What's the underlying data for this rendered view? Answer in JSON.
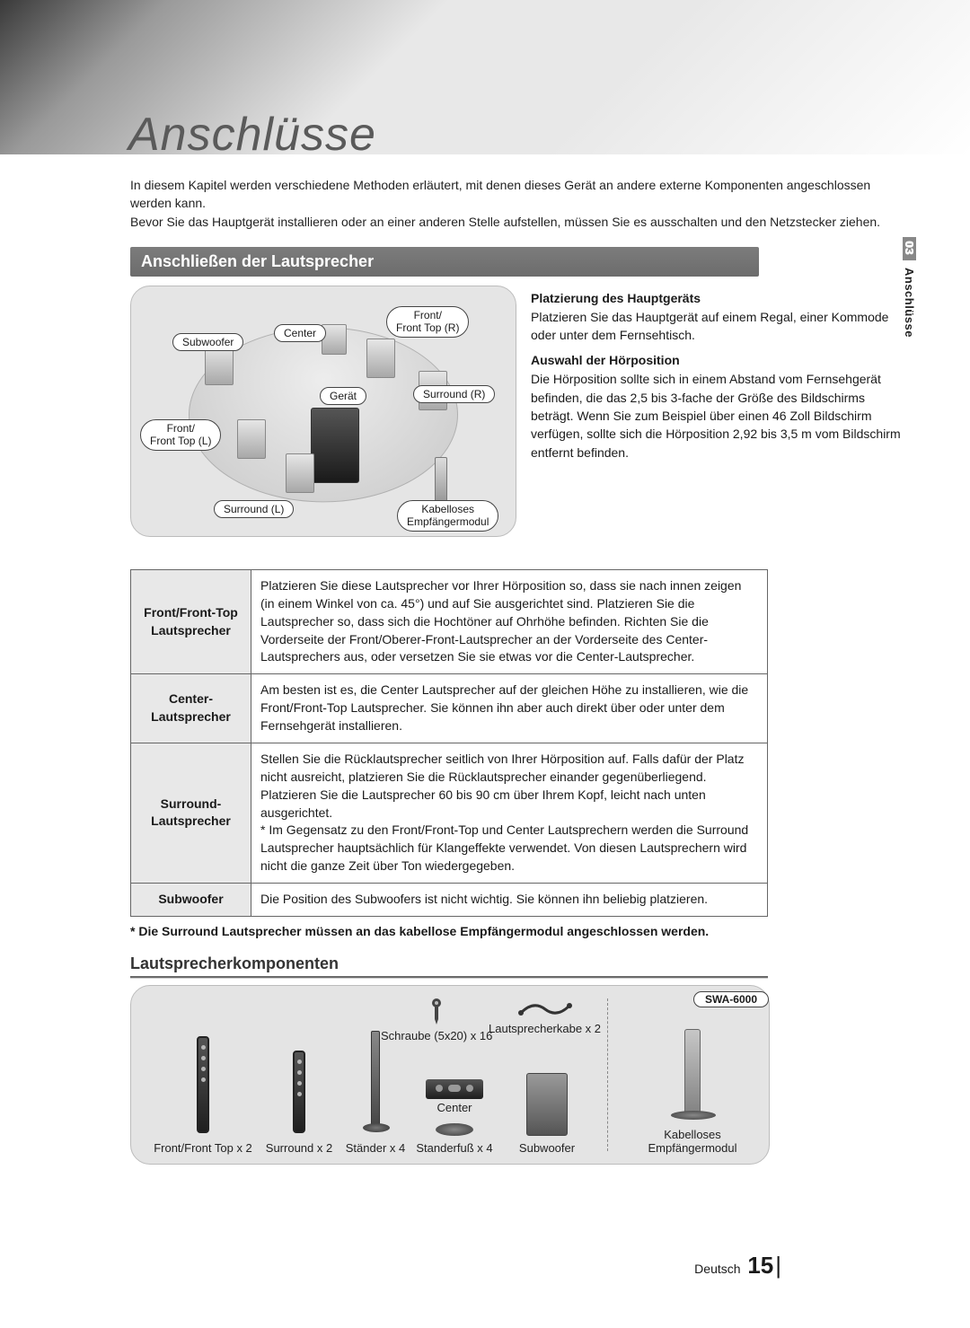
{
  "title": "Anschlüsse",
  "intro": {
    "p1": "In diesem Kapitel werden verschiedene Methoden erläutert, mit denen dieses Gerät an andere externe Komponenten angeschlossen werden kann.",
    "p2": "Bevor Sie das Hauptgerät installieren oder an einer anderen Stelle aufstellen, müssen Sie es ausschalten und den Netzstecker ziehen."
  },
  "side_tab": {
    "number": "03",
    "label": "Anschlüsse"
  },
  "section_bar": "Anschließen der Lautsprecher",
  "diagram_labels": {
    "subwoofer": "Subwoofer",
    "center": "Center",
    "front_r": "Front/\nFront Top (R)",
    "unit": "Gerät",
    "surround_r": "Surround (R)",
    "front_l": "Front/\nFront Top (L)",
    "surround_l": "Surround (L)",
    "wrm": "Kabelloses\nEmpfängermodul"
  },
  "right_text": {
    "h1": "Platzierung des Hauptgeräts",
    "p1": "Platzieren Sie das Hauptgerät auf einem Regal, einer Kommode oder unter dem Fernsehtisch.",
    "h2": "Auswahl der Hörposition",
    "p2": "Die Hörposition sollte sich in einem Abstand vom Fernsehgerät befinden, die das 2,5 bis 3-fache der Größe des Bildschirms beträgt. Wenn Sie zum Beispiel über einen 46 Zoll Bildschirm verfügen, sollte sich die Hörposition 2,92 bis 3,5 m vom Bildschirm entfernt befinden."
  },
  "table": {
    "rows": [
      {
        "label": "Front/Front-Top Lautsprecher",
        "text": "Platzieren Sie diese Lautsprecher vor Ihrer Hörposition so, dass sie nach innen zeigen (in einem Winkel von ca. 45°) und auf Sie ausgerichtet sind. Platzieren Sie die Lautsprecher so, dass sich die Hochtöner auf Ohrhöhe befinden. Richten Sie die Vorderseite der Front/Oberer-Front-Lautsprecher an der Vorderseite des Center-Lautsprechers aus, oder versetzen Sie sie etwas vor die Center-Lautsprecher."
      },
      {
        "label": "Center-Lautsprecher",
        "text": "Am besten ist es, die Center Lautsprecher auf der gleichen Höhe zu installieren, wie die Front/Front-Top Lautsprecher. Sie können ihn aber auch direkt über oder unter dem Fernsehgerät installieren."
      },
      {
        "label": "Surround-Lautsprecher",
        "text": "Stellen Sie die Rücklautsprecher seitlich von Ihrer Hörposition auf. Falls dafür der Platz nicht ausreicht, platzieren Sie die Rücklautsprecher einander gegenüberliegend. Platzieren Sie die Lautsprecher 60 bis 90 cm über Ihrem Kopf, leicht nach unten ausgerichtet.\n*  Im Gegensatz zu den Front/Front-Top und Center Lautsprechern werden die Surround Lautsprecher hauptsächlich für Klangeffekte verwendet. Von diesen Lautsprechern wird nicht die ganze Zeit über Ton wiedergegeben."
      },
      {
        "label": "Subwoofer",
        "text": "Die Position des Subwoofers ist nicht wichtig. Sie können ihn beliebig platzieren."
      }
    ]
  },
  "note_line": "* Die Surround Lautsprecher müssen an das kabellose Empfängermodul angeschlossen werden.",
  "sub_heading": "Lautsprecherkomponenten",
  "components": {
    "screw": "Schraube (5x20) x 16",
    "cable": "Lautsprecherkabe x 2",
    "front": "Front/Front Top x 2",
    "surround": "Surround x 2",
    "stand": "Ständer x 4",
    "standfoot": "Standerfuß x 4",
    "center": "Center",
    "subwoofer": "Subwoofer",
    "wrm": "Kabelloses\nEmpfängermodul",
    "swa": "SWA-6000"
  },
  "footer": {
    "lang": "Deutsch",
    "page": "15"
  },
  "colors": {
    "section_bar_bg": "#6e6e6e",
    "panel_bg": "#e5e5e5",
    "table_border": "#666666",
    "label_cell_bg": "#e8e8e8"
  }
}
